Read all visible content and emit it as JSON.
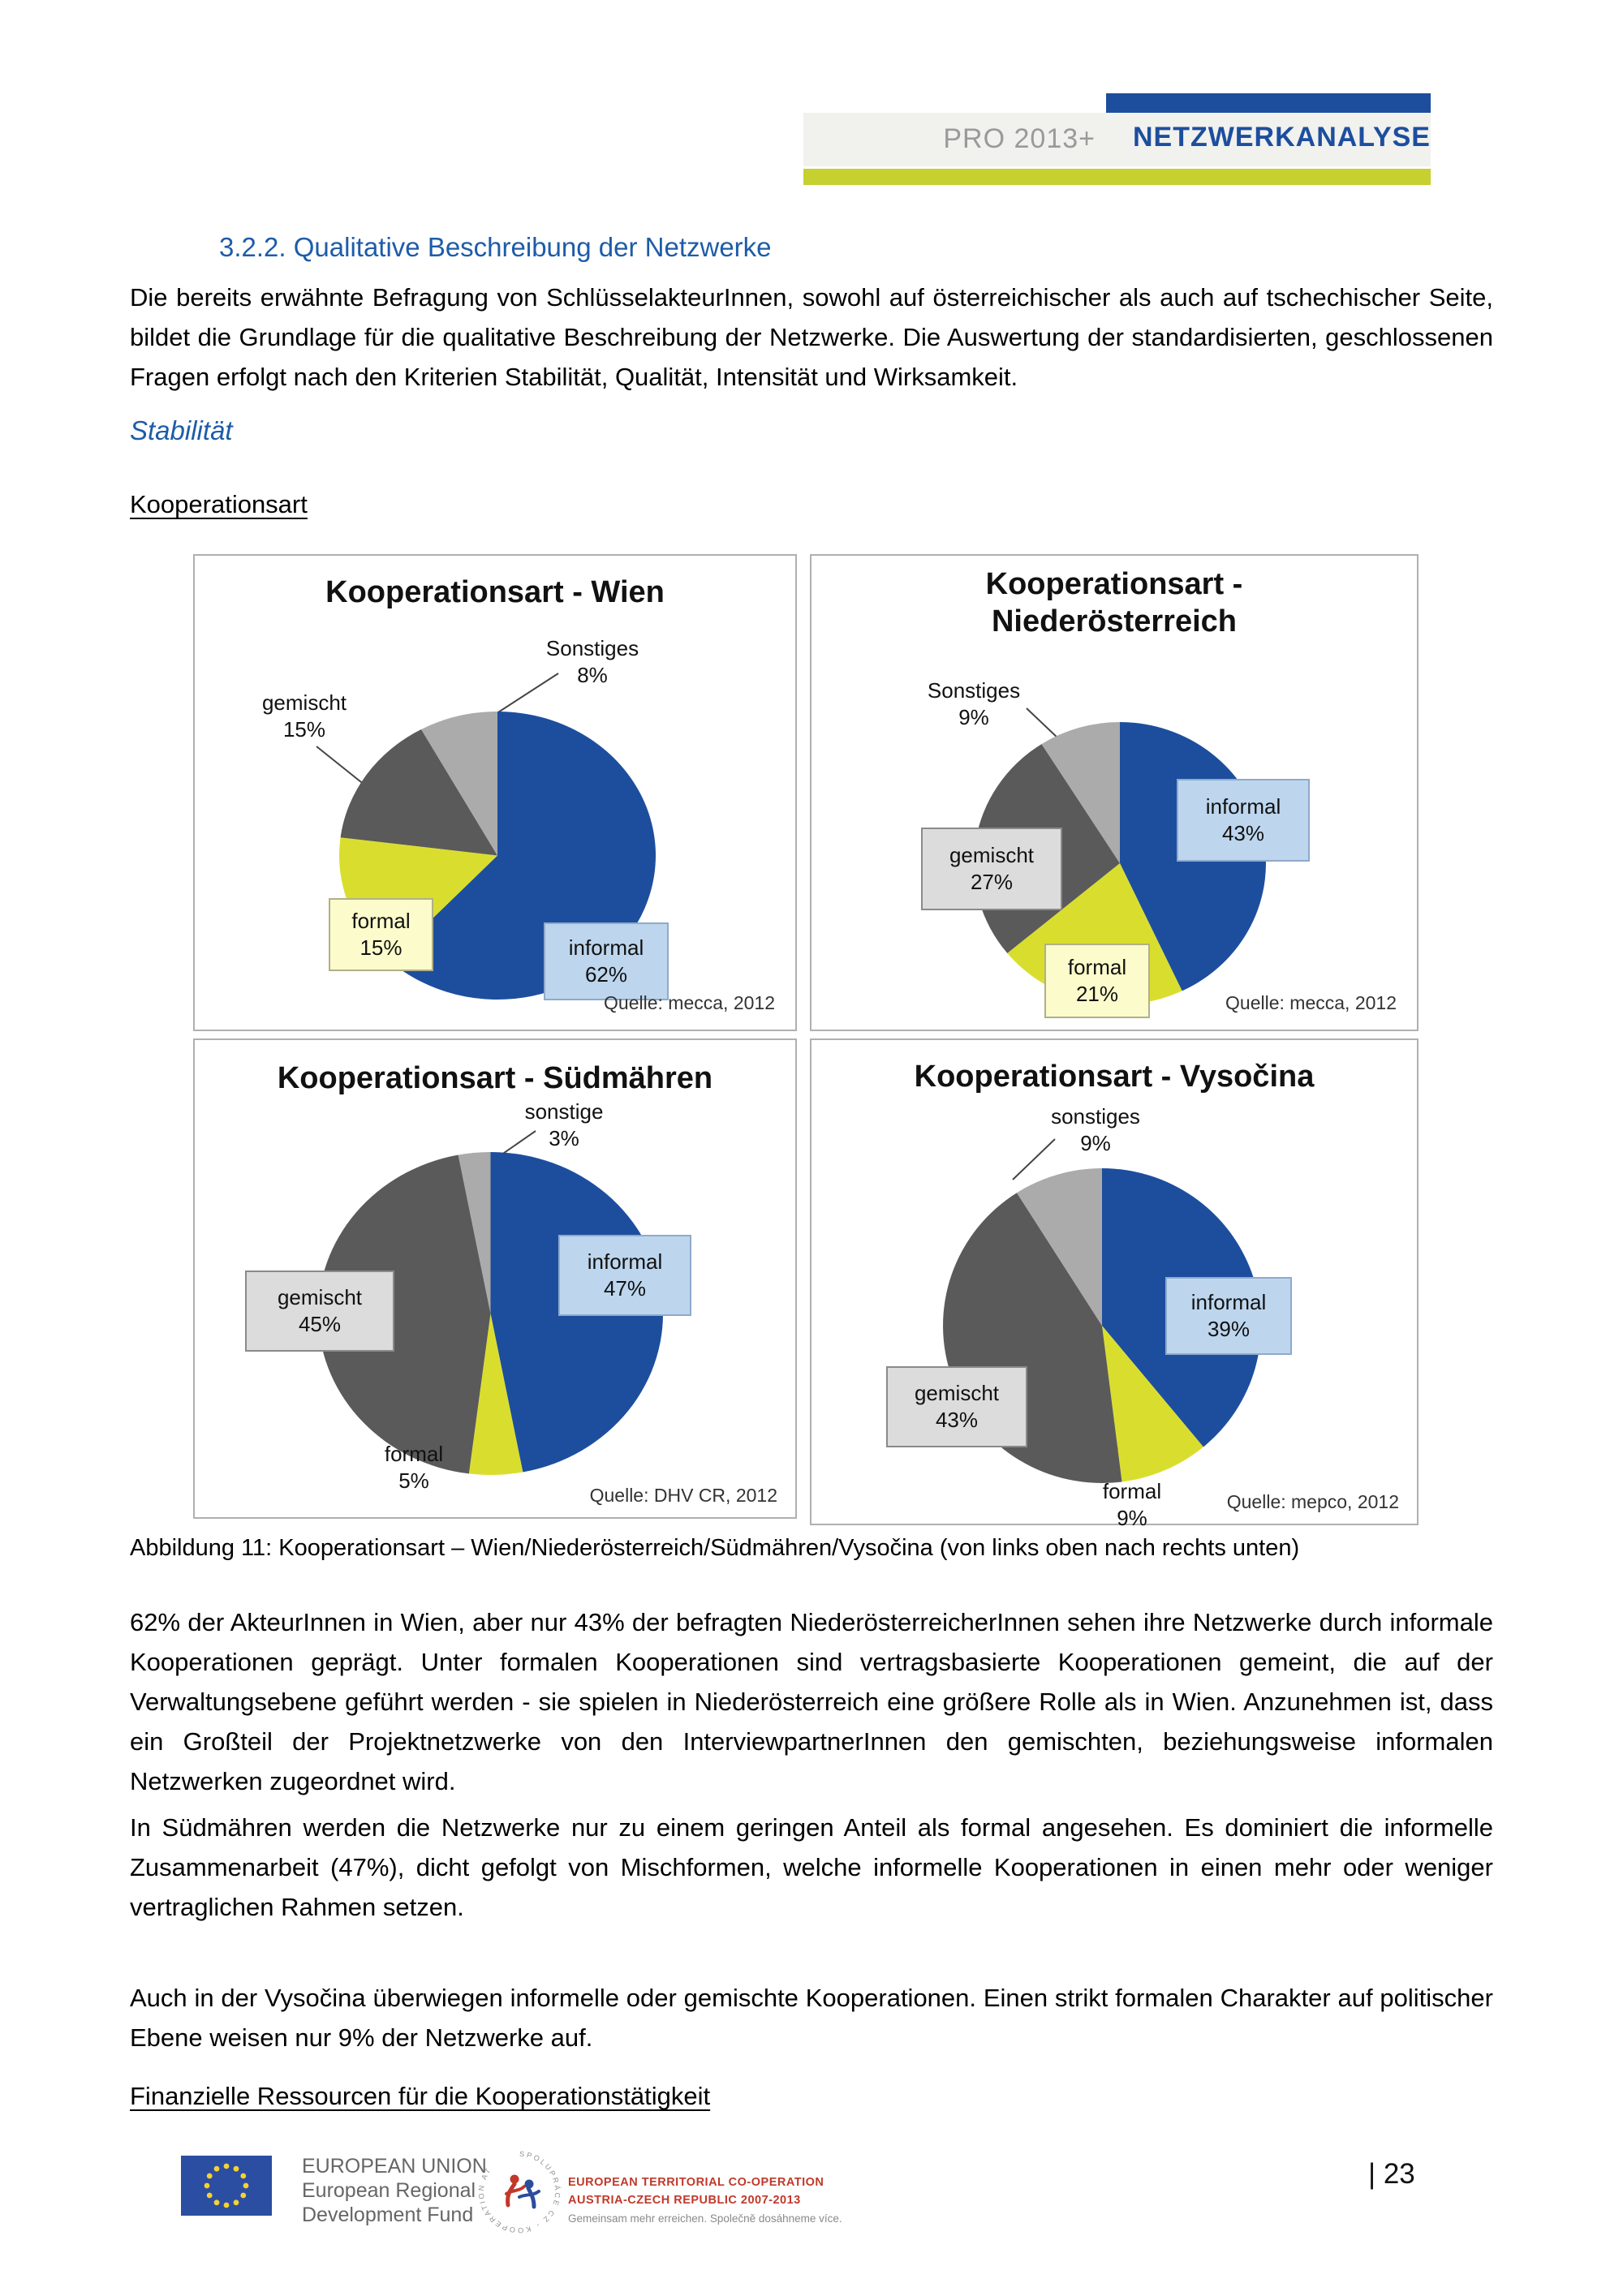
{
  "header": {
    "program_label": "PRO 2013+",
    "title": "NETZWERKANALYSE"
  },
  "section": {
    "heading": "3.2.2. Qualitative Beschreibung der Netzwerke",
    "paragraph_intro": "Die bereits erwähnte Befragung von SchlüsselakteurInnen, sowohl auf österreichischer als auch auf tschechischer Seite, bildet die Grundlage für die qualitative Beschreibung der Netzwerke. Die Auswertung der standardisierten, geschlossenen Fragen erfolgt nach den Kriterien Stabilität, Qualität, Intensität und Wirksamkeit.",
    "subheading_stabilitaet": "Stabilität",
    "subheading_kooperationsart": "Kooperationsart",
    "figure_caption": "Abbildung 11: Kooperationsart – Wien/Niederösterreich/Südmähren/Vysočina (von links oben nach rechts unten)",
    "paragraph_wien_noe": "62% der AkteurInnen in Wien, aber nur 43% der befragten NiederösterreicherInnen sehen ihre Netzwerke durch informale Kooperationen geprägt. Unter formalen Kooperationen sind vertragsbasierte Kooperationen gemeint, die auf der Verwaltungsebene geführt werden - sie spielen in Niederösterreich eine größere Rolle als in Wien. Anzunehmen ist, dass ein Großteil der Projektnetzwerke von den InterviewpartnerInnen den gemischten, beziehungsweise informalen Netzwerken zugeordnet wird.",
    "paragraph_suedmaehren": "In Südmähren werden die Netzwerke nur zu einem geringen Anteil als formal angesehen. Es dominiert die informelle Zusammenarbeit (47%), dicht gefolgt von Mischformen, welche informelle Kooperationen in einen mehr oder weniger vertraglichen Rahmen setzen.",
    "paragraph_vysocina": "Auch in der Vysočina überwiegen informelle oder gemischte Kooperationen. Einen strikt formalen Charakter auf politischer Ebene weisen nur 9% der Netzwerke auf.",
    "subheading_finanzielle": "Finanzielle Ressourcen für die Kooperationstätigkeit"
  },
  "chart_data": [
    {
      "type": "pie",
      "title": "Kooperationsart - Wien",
      "title_lines": [
        "Kooperationsart - Wien"
      ],
      "categories": [
        "informal",
        "formal",
        "gemischt",
        "Sonstiges"
      ],
      "values": [
        62,
        15,
        15,
        8
      ],
      "source": "Quelle: mecca, 2012",
      "legend_position": "data-labels"
    },
    {
      "type": "pie",
      "title": "Kooperationsart - Niederösterreich",
      "title_lines": [
        "Kooperationsart -",
        "Niederösterreich"
      ],
      "categories": [
        "informal",
        "formal",
        "gemischt",
        "Sonstiges"
      ],
      "values": [
        43,
        21,
        27,
        9
      ],
      "source": "Quelle: mecca, 2012",
      "legend_position": "data-labels"
    },
    {
      "type": "pie",
      "title": "Kooperationsart - Südmähren",
      "title_lines": [
        "Kooperationsart - Südmähren"
      ],
      "categories": [
        "informal",
        "formal",
        "gemischt",
        "sonstige"
      ],
      "values": [
        47,
        5,
        45,
        3
      ],
      "source": "Quelle: DHV CR, 2012",
      "legend_position": "data-labels"
    },
    {
      "type": "pie",
      "title": "Kooperationsart - Vysočina",
      "title_lines": [
        "Kooperationsart - Vysočina"
      ],
      "categories": [
        "informal",
        "formal",
        "gemischt",
        "sonstiges"
      ],
      "values": [
        39,
        9,
        43,
        9
      ],
      "source": "Quelle: mepco, 2012",
      "legend_position": "data-labels"
    }
  ],
  "colors": {
    "accent_blue": "#1d4e9e",
    "heading_blue": "#1e5ca8",
    "header_band": "#f1f1ee",
    "yellow_bar": "#c6d02e",
    "slice_palette": [
      "#1d4e9e",
      "#d9de2e",
      "#5a5a5a",
      "#ababab"
    ],
    "informal_box": "#bdd6ee",
    "formal_box": "#fbfbcb",
    "gemischt_box": "#dcdcdc"
  },
  "icons": {
    "eu_flag": "eu-flag-icon",
    "atcz_logo": "atcz-program-logo-icon"
  },
  "footer": {
    "eu_lines": [
      "EUROPEAN UNION",
      "European Regional",
      "Development Fund"
    ],
    "logo_ring_text": "SPOLUPRÁCE CZ - KOOPERATION AT",
    "coop_lines": [
      "EUROPEAN TERRITORIAL CO-OPERATION",
      "AUSTRIA-CZECH REPUBLIC 2007-2013",
      "Gemeinsam mehr erreichen. Společně dosáhneme více."
    ],
    "page_number": "| 23"
  }
}
